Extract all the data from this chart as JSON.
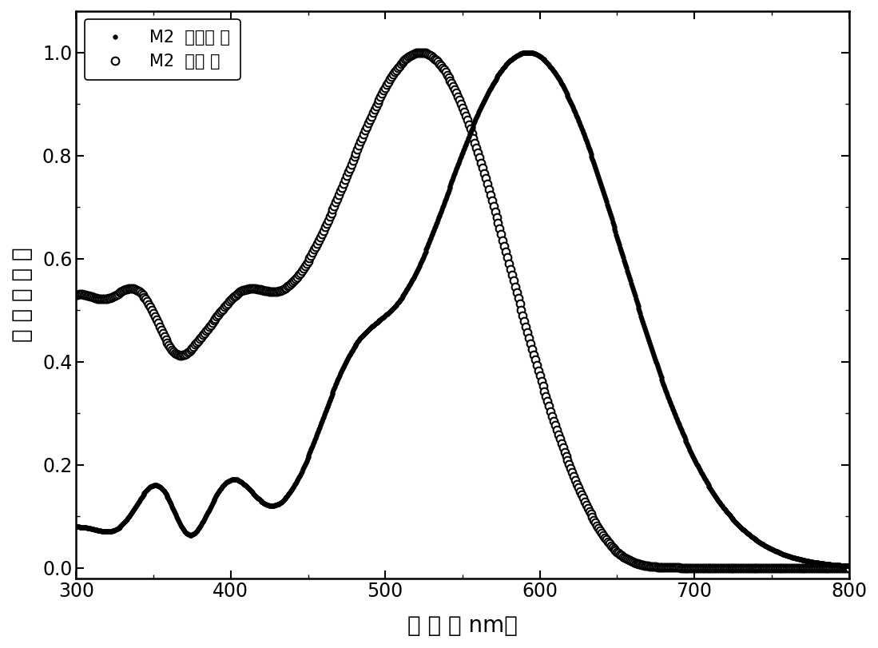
{
  "xlabel": "波 长 （ nm）",
  "ylabel": "归 一 化 吸 收",
  "legend1": "M2  在氯仿 中",
  "legend2": "M2  在膜 中",
  "xlim": [
    300,
    800
  ],
  "ylim": [
    -0.02,
    1.08
  ],
  "xticks": [
    300,
    400,
    500,
    600,
    700,
    800
  ],
  "yticks": [
    0.0,
    0.2,
    0.4,
    0.6,
    0.8,
    1.0
  ],
  "background": "#ffffff",
  "marker_size_filled": 4,
  "marker_size_open": 7,
  "step_filled": 2,
  "step_open": 4
}
